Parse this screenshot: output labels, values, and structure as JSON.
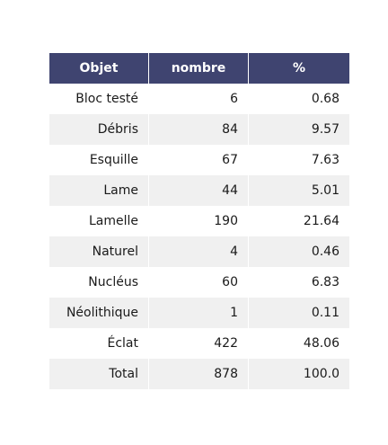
{
  "chart_data": {
    "type": "table",
    "columns": [
      "Objet",
      "nombre",
      "%"
    ],
    "rows": [
      [
        "Bloc testé",
        "6",
        "0.68"
      ],
      [
        "Débris",
        "84",
        "9.57"
      ],
      [
        "Esquille",
        "67",
        "7.63"
      ],
      [
        "Lame",
        "44",
        "5.01"
      ],
      [
        "Lamelle",
        "190",
        "21.64"
      ],
      [
        "Naturel",
        "4",
        "0.46"
      ],
      [
        "Nucléus",
        "60",
        "6.83"
      ],
      [
        "Néolithique",
        "1",
        "0.11"
      ],
      [
        "Éclat",
        "422",
        "48.06"
      ],
      [
        "Total",
        "878",
        "100.0"
      ]
    ],
    "header_color": "#3f4470",
    "stripe_color": "#f0f0f0"
  }
}
